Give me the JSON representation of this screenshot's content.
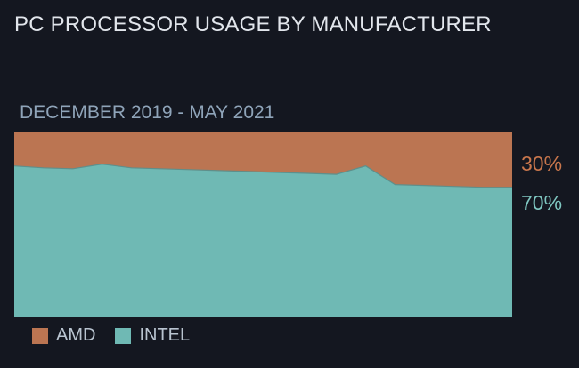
{
  "header": {
    "title": "PC PROCESSOR USAGE BY MANUFACTURER"
  },
  "colors": {
    "amd": "#bb7552",
    "intel": "#6fb9b4",
    "background": "#141720"
  },
  "chart_data": {
    "type": "area",
    "stacked": true,
    "normalized": true,
    "title": "DECEMBER 2019 - MAY 2021",
    "x": [
      "2019-12",
      "2020-01",
      "2020-02",
      "2020-03",
      "2020-04",
      "2020-05",
      "2020-06",
      "2020-07",
      "2020-08",
      "2020-09",
      "2020-10",
      "2020-11",
      "2020-12",
      "2021-01",
      "2021-02",
      "2021-03",
      "2021-04",
      "2021-05"
    ],
    "ylim": [
      0,
      100
    ],
    "grid": false,
    "legend_position": "bottom-left",
    "series": [
      {
        "name": "INTEL",
        "color": "#6fb9b4",
        "values": [
          81.5,
          80.5,
          80,
          82.5,
          80.5,
          80,
          79.5,
          79,
          78.5,
          78,
          77.5,
          77,
          81.5,
          71.5,
          71,
          70.5,
          70,
          70
        ],
        "end_label": "70%"
      },
      {
        "name": "AMD",
        "color": "#bb7552",
        "values": [
          18.5,
          19.5,
          20,
          17.5,
          19.5,
          20,
          20.5,
          21,
          21.5,
          22,
          22.5,
          23,
          18.5,
          28.5,
          29,
          29.5,
          30,
          30
        ],
        "end_label": "30%"
      }
    ],
    "legend": [
      {
        "name": "AMD",
        "color": "#bb7552"
      },
      {
        "name": "INTEL",
        "color": "#6fb9b4"
      }
    ]
  }
}
